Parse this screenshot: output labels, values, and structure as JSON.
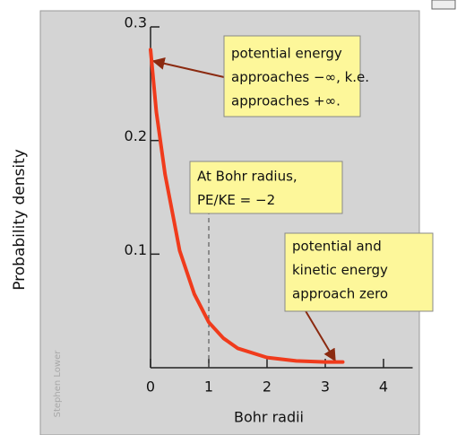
{
  "chart_data": {
    "type": "line",
    "ylabel": "Probability density",
    "xlabel": "Bohr radii",
    "x": [
      0,
      0.1,
      0.25,
      0.4,
      0.5,
      0.75,
      1,
      1.25,
      1.5,
      2,
      2.5,
      3,
      3.3
    ],
    "values": [
      0.28,
      0.225,
      0.17,
      0.13,
      0.103,
      0.065,
      0.04,
      0.026,
      0.017,
      0.009,
      0.006,
      0.005,
      0.005
    ],
    "color": "#f03b1c",
    "xlim": [
      0,
      4.5
    ],
    "ylim": [
      0,
      0.3
    ],
    "xticks": [
      0,
      1,
      2,
      3,
      4
    ],
    "yticks": [
      0.1,
      0.2,
      0.3
    ],
    "reference_line": {
      "x": 1,
      "y": 0.14
    },
    "annotations": [
      {
        "lines": [
          "potential energy",
          "approaches −∞, k.e.",
          "approaches +∞."
        ]
      },
      {
        "lines": [
          "At Bohr radius,",
          "PE/KE = −2"
        ]
      },
      {
        "lines": [
          "potential  and",
          "kinetic energy",
          "approach zero"
        ]
      }
    ],
    "watermark": "Stephen Lower"
  }
}
